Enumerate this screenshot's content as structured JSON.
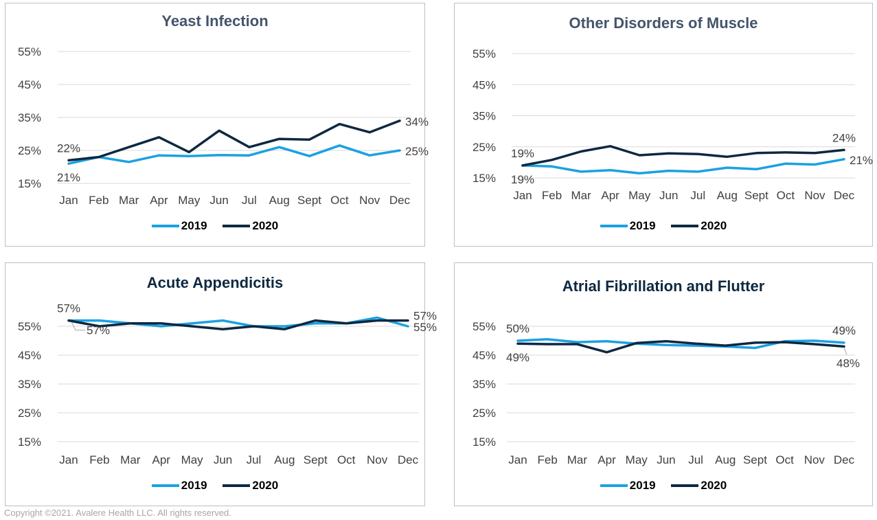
{
  "colors": {
    "series_2019": "#1ba1e2",
    "series_2020": "#0e2841",
    "gridline": "#d9d9d9",
    "title": "#44546a"
  },
  "legend": {
    "label_2019": "2019",
    "label_2020": "2020"
  },
  "footer": "Copyright ©2021. Avalere Health LLC. All rights reserved.",
  "chart_data": [
    {
      "type": "line",
      "title": "Yeast Infection",
      "categories": [
        "Jan",
        "Feb",
        "Mar",
        "Apr",
        "May",
        "Jun",
        "Jul",
        "Aug",
        "Sept",
        "Oct",
        "Nov",
        "Dec"
      ],
      "y_ticks": [
        "15%",
        "25%",
        "35%",
        "45%",
        "55%"
      ],
      "ylim": [
        15,
        55
      ],
      "series": [
        {
          "name": "2019",
          "values": [
            21,
            23,
            21.5,
            23.5,
            23.3,
            23.6,
            23.5,
            26,
            23.3,
            26.5,
            23.5,
            25
          ]
        },
        {
          "name": "2020",
          "values": [
            22,
            23,
            26,
            29,
            24.5,
            31,
            26,
            28.5,
            28.3,
            33,
            30.5,
            34
          ]
        }
      ],
      "data_labels": [
        {
          "series": "2019",
          "index": 0,
          "text": "21%",
          "pos": "below"
        },
        {
          "series": "2020",
          "index": 0,
          "text": "22%",
          "pos": "above"
        },
        {
          "series": "2020",
          "index": 11,
          "text": "34%",
          "pos": "right"
        },
        {
          "series": "2019",
          "index": 11,
          "text": "25%",
          "pos": "right"
        }
      ]
    },
    {
      "type": "line",
      "title": "Other Disorders of Muscle",
      "categories": [
        "Jan",
        "Feb",
        "Mar",
        "Apr",
        "May",
        "Jun",
        "Jul",
        "Aug",
        "Sept",
        "Oct",
        "Nov",
        "Dec"
      ],
      "y_ticks": [
        "15%",
        "25%",
        "35%",
        "45%",
        "55%"
      ],
      "ylim": [
        15,
        55
      ],
      "series": [
        {
          "name": "2019",
          "values": [
            19,
            18.7,
            17,
            17.5,
            16.5,
            17.3,
            17,
            18.3,
            17.8,
            19.6,
            19.3,
            21
          ]
        },
        {
          "name": "2020",
          "values": [
            19,
            20.8,
            23.5,
            25.2,
            22.3,
            22.9,
            22.7,
            21.8,
            23,
            23.2,
            23,
            24
          ]
        }
      ],
      "data_labels": [
        {
          "series": "2020",
          "index": 0,
          "text": "19%",
          "pos": "above"
        },
        {
          "series": "2019",
          "index": 0,
          "text": "19%",
          "pos": "below"
        },
        {
          "series": "2020",
          "index": 11,
          "text": "24%",
          "pos": "above"
        },
        {
          "series": "2019",
          "index": 11,
          "text": "21%",
          "pos": "right"
        }
      ]
    },
    {
      "type": "line",
      "title": "Acute Appendicitis",
      "categories": [
        "Jan",
        "Feb",
        "Mar",
        "Apr",
        "May",
        "Jun",
        "Jul",
        "Aug",
        "Sept",
        "Oct",
        "Nov",
        "Dec"
      ],
      "y_ticks": [
        "15%",
        "25%",
        "35%",
        "45%",
        "55%"
      ],
      "ylim": [
        15,
        60
      ],
      "series": [
        {
          "name": "2019",
          "values": [
            57,
            57,
            56,
            55,
            56,
            57,
            55,
            55,
            56,
            56,
            58,
            55
          ]
        },
        {
          "name": "2020",
          "values": [
            57,
            55,
            56,
            56,
            55,
            54,
            55,
            54,
            57,
            56,
            57,
            57
          ]
        }
      ],
      "data_labels": [
        {
          "series": "2019",
          "index": 0,
          "text": "57%",
          "pos": "above"
        },
        {
          "series": "2020",
          "index": 0,
          "text": "57%",
          "pos": "below-right"
        },
        {
          "series": "2020",
          "index": 11,
          "text": "57%",
          "pos": "right-up"
        },
        {
          "series": "2019",
          "index": 11,
          "text": "55%",
          "pos": "right"
        }
      ]
    },
    {
      "type": "line",
      "title": "Atrial Fibrillation and Flutter",
      "categories": [
        "Jan",
        "Feb",
        "Mar",
        "Apr",
        "May",
        "Jun",
        "Jul",
        "Aug",
        "Sept",
        "Oct",
        "Nov",
        "Dec"
      ],
      "y_ticks": [
        "15%",
        "25%",
        "35%",
        "45%",
        "55%"
      ],
      "ylim": [
        15,
        55
      ],
      "series": [
        {
          "name": "2019",
          "values": [
            50,
            50.5,
            49.5,
            49.8,
            49,
            48.5,
            48.3,
            48,
            47.5,
            49.8,
            50,
            49.3
          ]
        },
        {
          "name": "2020",
          "values": [
            49,
            48.8,
            48.8,
            46,
            49.2,
            49.8,
            49,
            48.3,
            49.3,
            49.5,
            48.8,
            48
          ]
        }
      ],
      "data_labels": [
        {
          "series": "2019",
          "index": 0,
          "text": "50%",
          "pos": "above"
        },
        {
          "series": "2020",
          "index": 0,
          "text": "49%",
          "pos": "below"
        },
        {
          "series": "2019",
          "index": 11,
          "text": "49%",
          "pos": "above"
        },
        {
          "series": "2020",
          "index": 11,
          "text": "48%",
          "pos": "below-far"
        }
      ]
    }
  ]
}
